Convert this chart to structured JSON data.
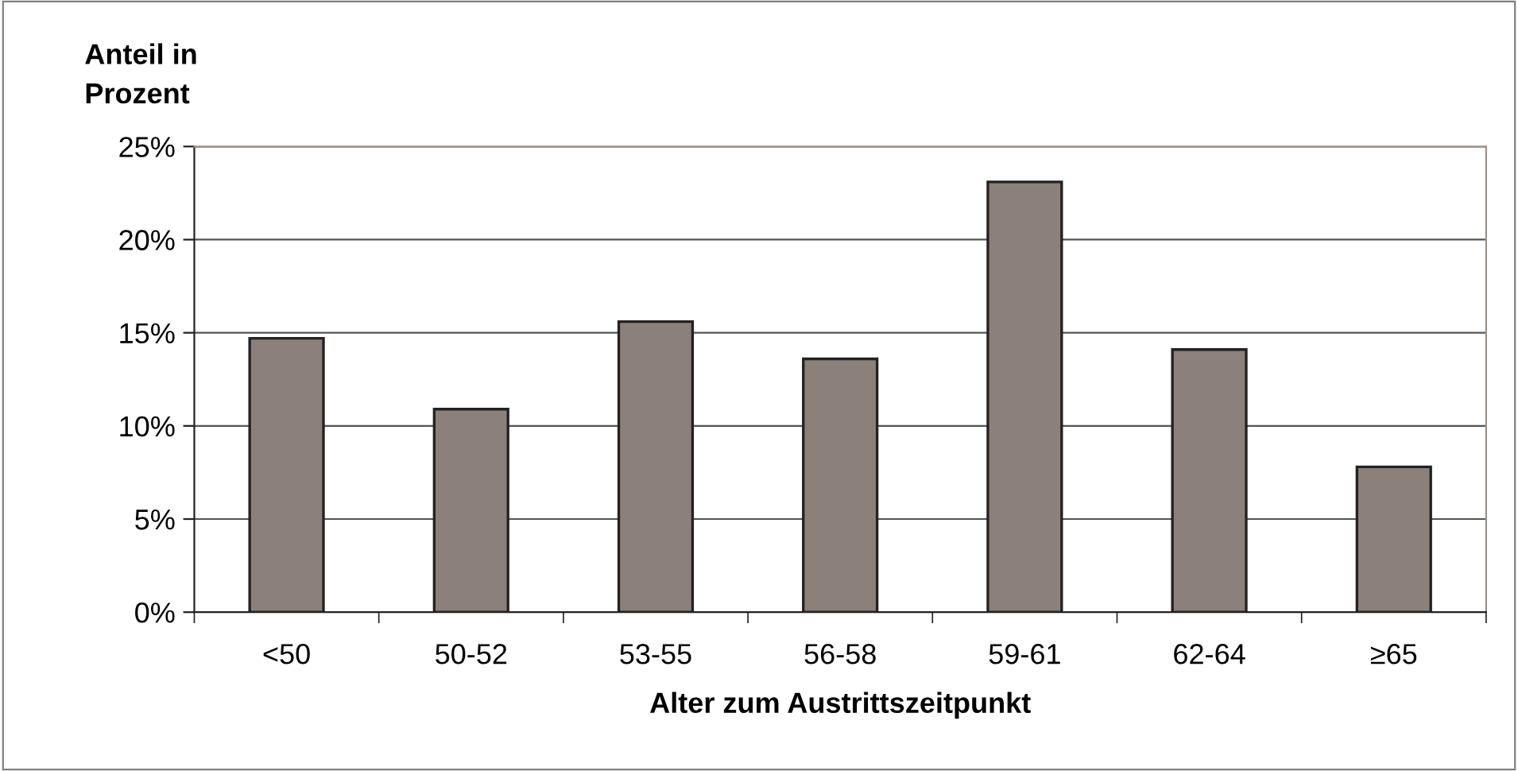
{
  "chart_data": {
    "type": "bar",
    "ylabel": "Anteil in\nProzent",
    "xlabel": "Alter zum Austrittszeitpunkt",
    "categories": [
      "<50",
      "50-52",
      "53-55",
      "56-58",
      "59-61",
      "62-64",
      "≥65"
    ],
    "values": [
      14.7,
      10.9,
      15.6,
      13.6,
      23.1,
      14.1,
      7.8
    ],
    "color": "#8c807b",
    "ylim": [
      0,
      25
    ],
    "yticks": [
      {
        "value": 0,
        "label": "0%"
      },
      {
        "value": 5,
        "label": "5%"
      },
      {
        "value": 10,
        "label": "10%"
      },
      {
        "value": 15,
        "label": "15%"
      },
      {
        "value": 20,
        "label": "20%"
      },
      {
        "value": 25,
        "label": "25%"
      }
    ],
    "grid": "y",
    "legend": false
  }
}
